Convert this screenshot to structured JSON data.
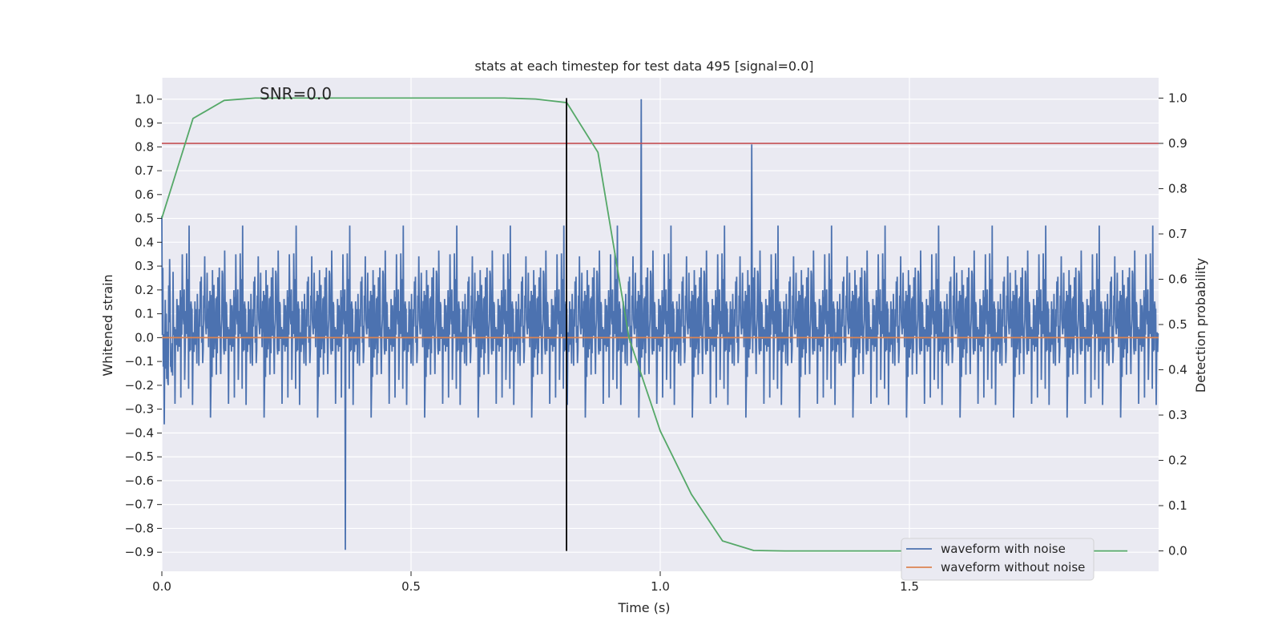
{
  "chart_data": {
    "type": "line",
    "title": "stats at each timestep for test data 495 [signal=0.0]",
    "xlabel": "Time (s)",
    "ylabel": "Whitened strain",
    "y2label": "Detection probability",
    "xlim": [
      0.0,
      2.0
    ],
    "ylim": [
      -0.98,
      1.09
    ],
    "y2lim": [
      -0.045,
      1.045
    ],
    "xticks": [
      "0.0",
      "0.5",
      "1.0",
      "1.5"
    ],
    "yticks": [
      "−0.9",
      "−0.8",
      "−0.7",
      "−0.6",
      "−0.5",
      "−0.4",
      "−0.3",
      "−0.2",
      "−0.1",
      "0.0",
      "0.1",
      "0.2",
      "0.3",
      "0.4",
      "0.5",
      "0.6",
      "0.7",
      "0.8",
      "0.9",
      "1.0"
    ],
    "y2ticks": [
      "0.0",
      "0.1",
      "0.2",
      "0.3",
      "0.4",
      "0.5",
      "0.6",
      "0.7",
      "0.8",
      "0.9",
      "1.0"
    ],
    "annotation": "SNR=0.0",
    "vline_x": 0.812,
    "threshold": 0.9,
    "grid": true,
    "legend_position": "lower-right",
    "series": [
      {
        "name": "waveform with noise",
        "color": "#4c72b0",
        "noise_amplitude": 0.35,
        "min": -0.89,
        "max": 1.0,
        "samples": 2048
      },
      {
        "name": "waveform without noise",
        "color": "#dd8452",
        "values_constant": 0.0
      },
      {
        "name": "",
        "color": "#55a868",
        "axis": "right",
        "x": [
          0.0,
          0.0625,
          0.125,
          0.1875,
          0.25,
          0.3125,
          0.375,
          0.4375,
          0.5,
          0.5625,
          0.625,
          0.6875,
          0.75,
          0.8125,
          0.875,
          0.9375,
          1.0,
          1.0625,
          1.125,
          1.1875,
          1.25,
          1.3125,
          1.375,
          1.4375,
          1.5,
          1.5625,
          1.625,
          1.6875,
          1.75,
          1.8125,
          1.875,
          1.9375
        ],
        "values": [
          0.735,
          0.955,
          0.995,
          1.0,
          1.0,
          1.0,
          1.0,
          1.0,
          1.0,
          1.0,
          1.0,
          1.0,
          0.998,
          0.99,
          0.88,
          0.47,
          0.265,
          0.125,
          0.022,
          0.001,
          0.0,
          0.0,
          0.0,
          0.0,
          0.0,
          0.0,
          0.0,
          0.0,
          0.0,
          0.0,
          0.0,
          0.0
        ]
      },
      {
        "name": "",
        "color": "#c44e52",
        "axis": "right",
        "values_constant": 0.9
      }
    ],
    "colors": {
      "plot_bg": "#eaeaf2",
      "grid": "#ffffff",
      "vline": "#000000",
      "text": "#262626"
    }
  }
}
